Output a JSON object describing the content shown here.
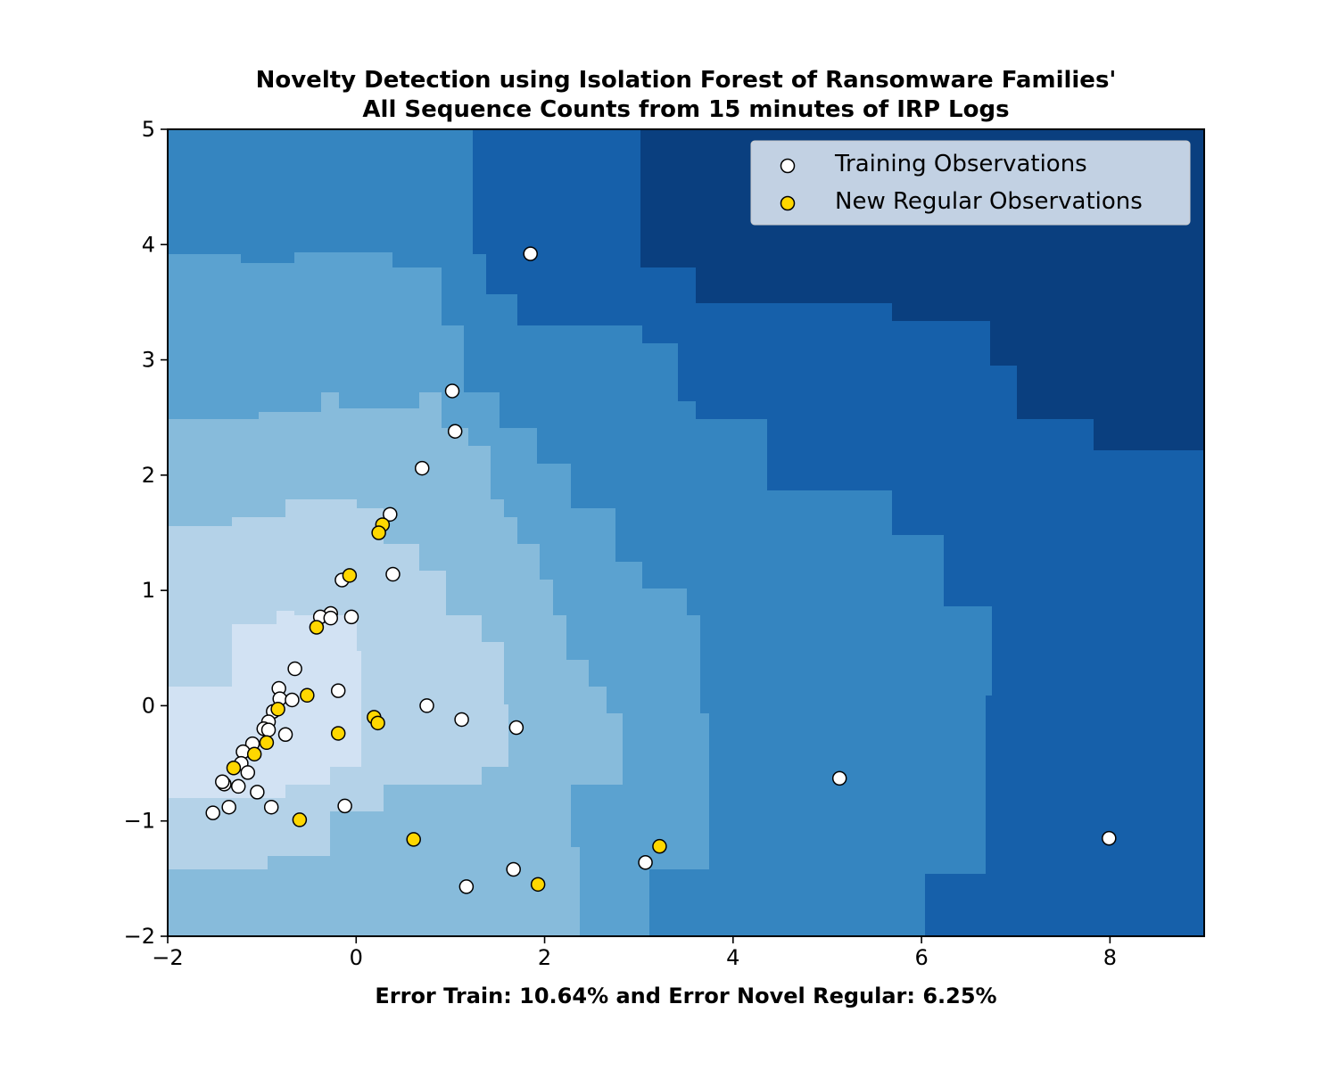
{
  "chart_data": {
    "type": "scatter",
    "title_line1": "Novelty Detection using Isolation Forest of Ransomware Families'",
    "title_line2": "All Sequence Counts from 15 minutes of IRP Logs",
    "xlabel": "Error Train: 10.64% and Error Novel Regular: 6.25%",
    "ylabel": "",
    "xlim": [
      -2,
      9
    ],
    "ylim": [
      -2,
      5
    ],
    "xticks": [
      -2,
      0,
      2,
      4,
      6,
      8
    ],
    "yticks": [
      -2,
      -1,
      0,
      1,
      2,
      3,
      4,
      5
    ],
    "xtick_labels": [
      "−2",
      "0",
      "2",
      "4",
      "6",
      "8"
    ],
    "ytick_labels": [
      "−2",
      "−1",
      "0",
      "1",
      "2",
      "3",
      "4",
      "5"
    ],
    "legend_position": "upper right",
    "background": "filled contour of anomaly decision function (Blues colormap)",
    "colors": {
      "training": "#ffffff",
      "new_regular": "#ffd700",
      "marker_edge": "#000000",
      "levels": [
        "#d2e2f3",
        "#b4d2e8",
        "#87bbdb",
        "#5ba2d0",
        "#3585c0",
        "#1660aa",
        "#0a3f7f"
      ]
    },
    "series": [
      {
        "name": "Training Observations",
        "color": "#ffffff",
        "points": [
          [
            1.85,
            3.92
          ],
          [
            1.02,
            2.73
          ],
          [
            1.05,
            2.38
          ],
          [
            0.7,
            2.06
          ],
          [
            0.36,
            1.66
          ],
          [
            0.39,
            1.14
          ],
          [
            -0.15,
            1.09
          ],
          [
            -0.27,
            0.8
          ],
          [
            -0.38,
            0.77
          ],
          [
            -0.27,
            0.76
          ],
          [
            -0.05,
            0.77
          ],
          [
            -0.65,
            0.32
          ],
          [
            -0.82,
            0.15
          ],
          [
            -0.81,
            0.06
          ],
          [
            -0.68,
            0.05
          ],
          [
            -0.19,
            0.13
          ],
          [
            0.75,
            0.0
          ],
          [
            1.12,
            -0.12
          ],
          [
            1.7,
            -0.19
          ],
          [
            -0.88,
            -0.05
          ],
          [
            -0.93,
            -0.14
          ],
          [
            -0.98,
            -0.2
          ],
          [
            -0.93,
            -0.21
          ],
          [
            -0.75,
            -0.25
          ],
          [
            -1.1,
            -0.33
          ],
          [
            -1.2,
            -0.4
          ],
          [
            -1.22,
            -0.5
          ],
          [
            -1.15,
            -0.58
          ],
          [
            -1.25,
            -0.7
          ],
          [
            -1.4,
            -0.68
          ],
          [
            -1.42,
            -0.66
          ],
          [
            -1.05,
            -0.75
          ],
          [
            -1.35,
            -0.88
          ],
          [
            -1.52,
            -0.93
          ],
          [
            -0.9,
            -0.88
          ],
          [
            -0.12,
            -0.87
          ],
          [
            5.13,
            -0.63
          ],
          [
            7.99,
            -1.15
          ],
          [
            3.07,
            -1.36
          ],
          [
            1.67,
            -1.42
          ],
          [
            1.17,
            -1.57
          ]
        ]
      },
      {
        "name": "New Regular Observations",
        "color": "#ffd700",
        "points": [
          [
            0.28,
            1.57
          ],
          [
            0.24,
            1.5
          ],
          [
            -0.07,
            1.13
          ],
          [
            -0.42,
            0.68
          ],
          [
            -0.52,
            0.09
          ],
          [
            -0.83,
            -0.03
          ],
          [
            0.19,
            -0.1
          ],
          [
            0.23,
            -0.15
          ],
          [
            -0.19,
            -0.24
          ],
          [
            -0.95,
            -0.32
          ],
          [
            -1.08,
            -0.42
          ],
          [
            -1.3,
            -0.54
          ],
          [
            -0.6,
            -0.99
          ],
          [
            0.61,
            -1.16
          ],
          [
            3.22,
            -1.22
          ],
          [
            1.93,
            -1.55
          ]
        ]
      }
    ]
  }
}
